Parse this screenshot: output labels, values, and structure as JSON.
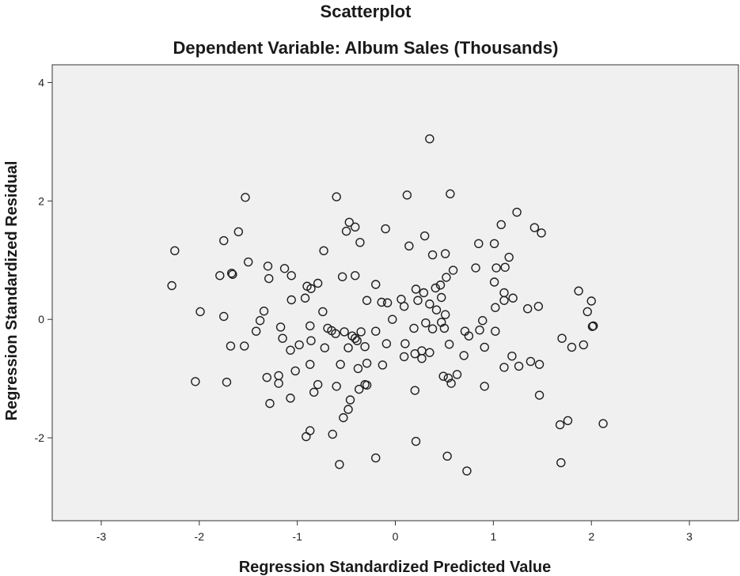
{
  "colors": {
    "plot_background": "#f0f0f0",
    "axis_line": "#333333",
    "marker_stroke": "#1e1e1e",
    "text": "#1a1a1a"
  },
  "chart_data": {
    "type": "scatter",
    "title": "Scatterplot",
    "subtitle": "Dependent Variable: Album Sales (Thousands)",
    "xlabel": "Regression Standardized Predicted Value",
    "ylabel": "Regression Standardized Residual",
    "xlim": [
      -3.5,
      3.5
    ],
    "ylim": [
      -3.4,
      4.3
    ],
    "x_ticks": [
      -3,
      -2,
      -1,
      0,
      1,
      2,
      3
    ],
    "x_tick_labels": [
      "-3",
      "-2",
      "-1",
      "0",
      "1",
      "2",
      "3"
    ],
    "y_ticks": [
      -2,
      0,
      2,
      4
    ],
    "y_tick_labels": [
      "-2",
      "0",
      "2",
      "4"
    ],
    "marker": "open-circle",
    "points": [
      [
        0.35,
        3.05
      ],
      [
        0.12,
        2.1
      ],
      [
        0.56,
        2.12
      ],
      [
        -0.6,
        2.07
      ],
      [
        -1.53,
        2.06
      ],
      [
        1.24,
        1.81
      ],
      [
        1.42,
        1.55
      ],
      [
        1.49,
        1.46
      ],
      [
        1.08,
        1.6
      ],
      [
        -0.47,
        1.64
      ],
      [
        -0.41,
        1.56
      ],
      [
        -0.5,
        1.49
      ],
      [
        -0.1,
        1.53
      ],
      [
        -1.6,
        1.48
      ],
      [
        -1.75,
        1.33
      ],
      [
        0.3,
        1.41
      ],
      [
        -0.36,
        1.3
      ],
      [
        0.14,
        1.24
      ],
      [
        0.85,
        1.28
      ],
      [
        1.01,
        1.28
      ],
      [
        -2.25,
        1.16
      ],
      [
        -0.73,
        1.16
      ],
      [
        0.51,
        1.11
      ],
      [
        0.38,
        1.09
      ],
      [
        1.16,
        1.05
      ],
      [
        -1.5,
        0.97
      ],
      [
        -1.3,
        0.9
      ],
      [
        -1.13,
        0.86
      ],
      [
        -1.67,
        0.78
      ],
      [
        -1.66,
        0.76
      ],
      [
        -1.79,
        0.74
      ],
      [
        -1.29,
        0.69
      ],
      [
        -1.06,
        0.74
      ],
      [
        -0.54,
        0.72
      ],
      [
        -0.41,
        0.74
      ],
      [
        0.52,
        0.71
      ],
      [
        0.59,
        0.83
      ],
      [
        0.82,
        0.87
      ],
      [
        1.03,
        0.87
      ],
      [
        1.12,
        0.88
      ],
      [
        -0.79,
        0.61
      ],
      [
        -0.9,
        0.56
      ],
      [
        -0.86,
        0.52
      ],
      [
        -0.2,
        0.59
      ],
      [
        0.06,
        0.34
      ],
      [
        0.29,
        0.45
      ],
      [
        0.41,
        0.53
      ],
      [
        0.46,
        0.58
      ],
      [
        0.21,
        0.51
      ],
      [
        1.01,
        0.63
      ],
      [
        1.11,
        0.45
      ],
      [
        1.2,
        0.36
      ],
      [
        -2.28,
        0.57
      ],
      [
        1.87,
        0.48
      ],
      [
        2.0,
        0.31
      ],
      [
        1.46,
        0.22
      ],
      [
        1.02,
        0.2
      ],
      [
        1.11,
        0.32
      ],
      [
        1.35,
        0.18
      ],
      [
        1.96,
        0.13
      ],
      [
        -1.99,
        0.13
      ],
      [
        -1.34,
        0.14
      ],
      [
        -1.06,
        0.33
      ],
      [
        -0.92,
        0.36
      ],
      [
        -0.74,
        0.13
      ],
      [
        -0.29,
        0.32
      ],
      [
        -0.14,
        0.29
      ],
      [
        -0.08,
        0.28
      ],
      [
        0.09,
        0.22
      ],
      [
        0.23,
        0.32
      ],
      [
        0.35,
        0.26
      ],
      [
        0.42,
        0.16
      ],
      [
        0.47,
        0.37
      ],
      [
        0.51,
        0.08
      ],
      [
        -1.75,
        0.05
      ],
      [
        -1.38,
        -0.02
      ],
      [
        -0.69,
        -0.15
      ],
      [
        -0.65,
        -0.19
      ],
      [
        -0.61,
        -0.24
      ],
      [
        -0.44,
        -0.28
      ],
      [
        -0.41,
        -0.32
      ],
      [
        -0.39,
        -0.36
      ],
      [
        -0.03,
        0.0
      ],
      [
        0.31,
        -0.06
      ],
      [
        0.38,
        -0.16
      ],
      [
        0.47,
        -0.05
      ],
      [
        0.5,
        -0.15
      ],
      [
        0.71,
        -0.2
      ],
      [
        0.86,
        -0.18
      ],
      [
        0.89,
        -0.02
      ],
      [
        1.02,
        -0.2
      ],
      [
        2.01,
        -0.12
      ],
      [
        2.02,
        -0.11
      ],
      [
        -1.42,
        -0.2
      ],
      [
        -1.17,
        -0.13
      ],
      [
        -0.87,
        -0.11
      ],
      [
        -0.52,
        -0.21
      ],
      [
        -0.35,
        -0.21
      ],
      [
        -0.2,
        -0.2
      ],
      [
        0.19,
        -0.15
      ],
      [
        -1.68,
        -0.45
      ],
      [
        -1.54,
        -0.45
      ],
      [
        -1.15,
        -0.32
      ],
      [
        -1.07,
        -0.52
      ],
      [
        -0.98,
        -0.43
      ],
      [
        -0.86,
        -0.36
      ],
      [
        -0.72,
        -0.48
      ],
      [
        -0.48,
        -0.48
      ],
      [
        -0.31,
        -0.46
      ],
      [
        -0.09,
        -0.41
      ],
      [
        0.1,
        -0.41
      ],
      [
        0.27,
        -0.53
      ],
      [
        0.35,
        -0.56
      ],
      [
        0.55,
        -0.42
      ],
      [
        0.7,
        -0.61
      ],
      [
        0.75,
        -0.28
      ],
      [
        0.91,
        -0.47
      ],
      [
        1.19,
        -0.62
      ],
      [
        1.38,
        -0.71
      ],
      [
        1.47,
        -0.76
      ],
      [
        1.7,
        -0.32
      ],
      [
        1.8,
        -0.47
      ],
      [
        1.92,
        -0.43
      ],
      [
        -1.31,
        -0.98
      ],
      [
        -1.19,
        -0.95
      ],
      [
        -1.19,
        -1.08
      ],
      [
        -1.02,
        -0.87
      ],
      [
        -0.87,
        -0.76
      ],
      [
        -0.56,
        -0.76
      ],
      [
        -0.38,
        -0.83
      ],
      [
        -0.29,
        -0.74
      ],
      [
        -0.13,
        -0.77
      ],
      [
        0.09,
        -0.63
      ],
      [
        0.2,
        -0.58
      ],
      [
        0.27,
        -0.66
      ],
      [
        0.49,
        -0.96
      ],
      [
        0.54,
        -0.99
      ],
      [
        0.63,
        -0.93
      ],
      [
        1.11,
        -0.81
      ],
      [
        1.26,
        -0.79
      ],
      [
        -2.04,
        -1.05
      ],
      [
        -1.72,
        -1.06
      ],
      [
        -1.28,
        -1.42
      ],
      [
        -1.07,
        -1.33
      ],
      [
        -0.83,
        -1.23
      ],
      [
        -0.79,
        -1.1
      ],
      [
        -0.6,
        -1.13
      ],
      [
        -0.37,
        -1.18
      ],
      [
        -0.31,
        -1.1
      ],
      [
        -0.29,
        -1.11
      ],
      [
        0.2,
        -1.2
      ],
      [
        0.57,
        -1.08
      ],
      [
        0.91,
        -1.13
      ],
      [
        1.47,
        -1.28
      ],
      [
        -0.46,
        -1.36
      ],
      [
        -0.48,
        -1.52
      ],
      [
        -0.53,
        -1.66
      ],
      [
        1.68,
        -1.78
      ],
      [
        1.76,
        -1.71
      ],
      [
        2.12,
        -1.76
      ],
      [
        -0.87,
        -1.88
      ],
      [
        -0.91,
        -1.98
      ],
      [
        -0.64,
        -1.94
      ],
      [
        0.21,
        -2.06
      ],
      [
        0.53,
        -2.31
      ],
      [
        -0.2,
        -2.34
      ],
      [
        -0.57,
        -2.45
      ],
      [
        0.73,
        -2.56
      ],
      [
        1.69,
        -2.42
      ]
    ]
  }
}
